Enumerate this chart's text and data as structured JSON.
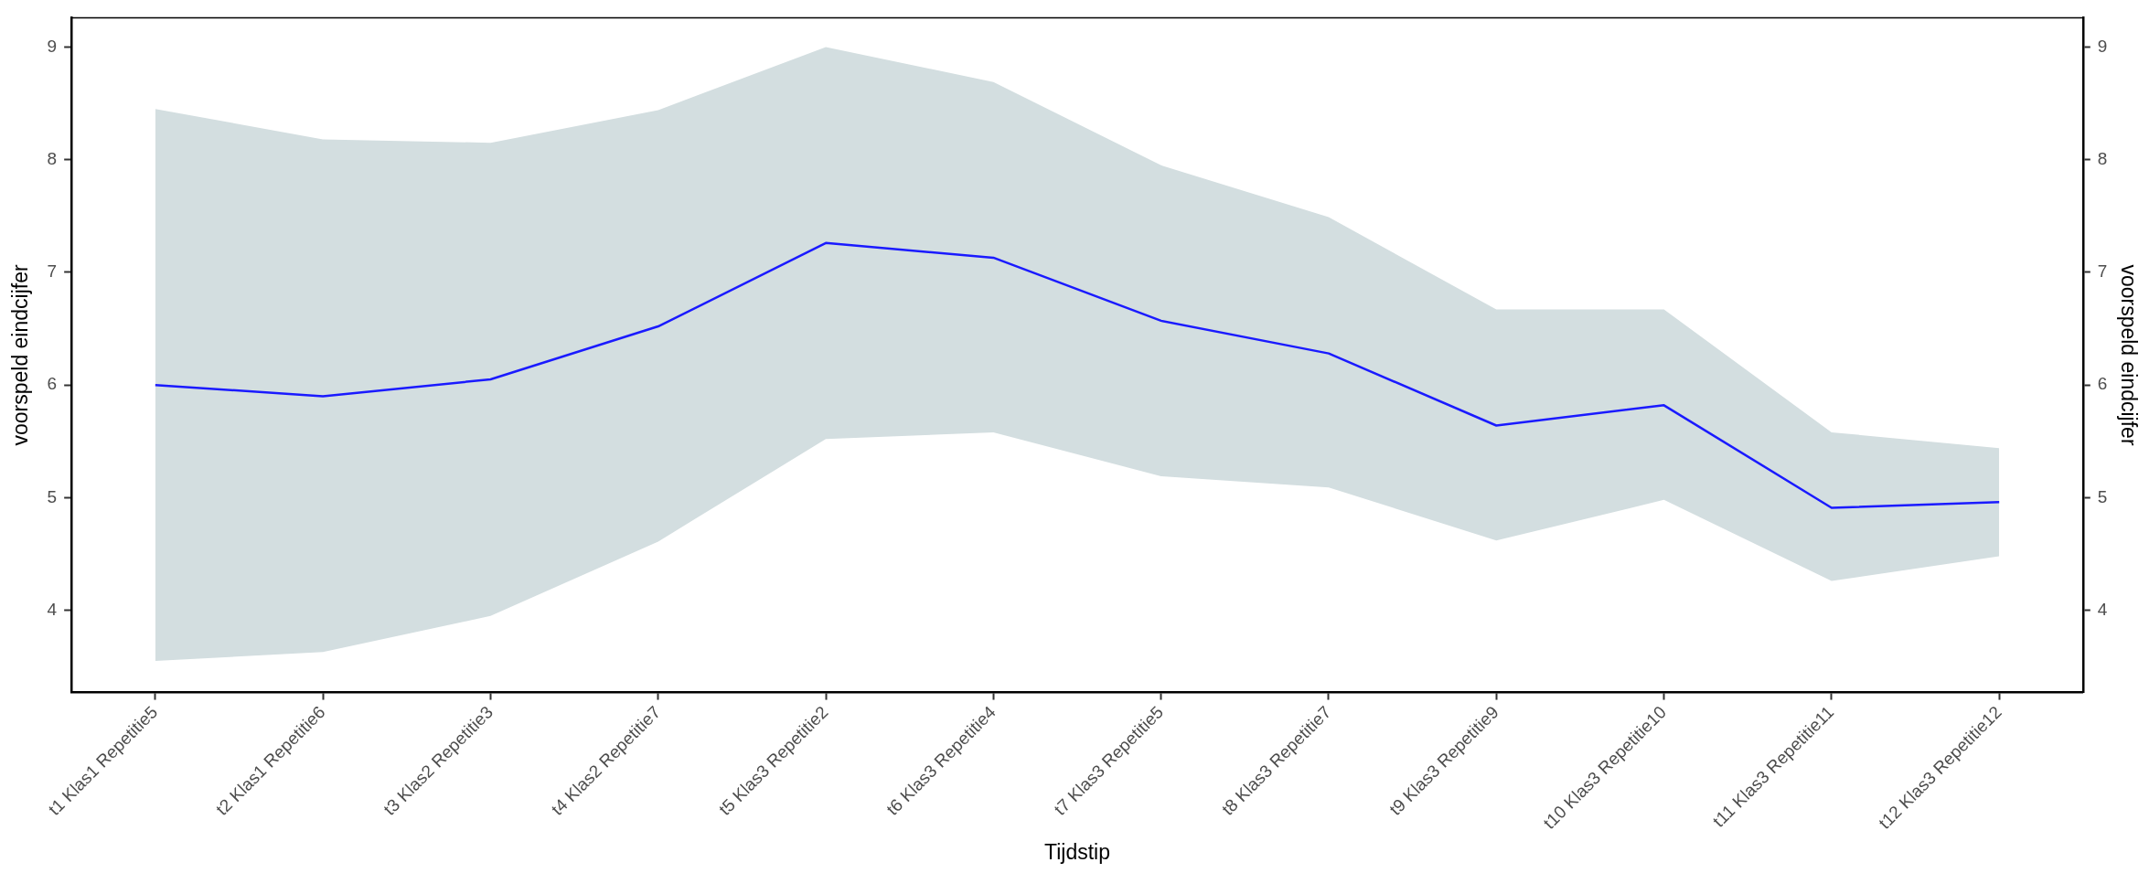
{
  "chart_data": {
    "type": "line",
    "xlabel": "Tijdstip",
    "ylabel": "voorspeld eindcijfer",
    "y2label": "voorspeld eindcijfer",
    "categories": [
      "t1 Klas1 Repetitie5",
      "t2 Klas1 Repetitie6",
      "t3 Klas2 Repetitie3",
      "t4 Klas2 Repetitie7",
      "t5 Klas3 Repetitie2",
      "t6 Klas3 Repetitie4",
      "t7 Klas3 Repetitie5",
      "t8 Klas3 Repetitie7",
      "t9 Klas3 Repetitie9",
      "t10 Klas3 Repetitie10",
      "t11 Klas3 Repetitie11",
      "t12 Klas3 Repetitie12"
    ],
    "series": [
      {
        "color": "#1a1aff",
        "values": [
          6.0,
          5.9,
          6.05,
          6.52,
          7.26,
          7.13,
          6.57,
          6.28,
          5.64,
          5.82,
          4.91,
          4.96
        ],
        "lower": [
          3.55,
          3.63,
          3.95,
          4.61,
          5.52,
          5.58,
          5.19,
          5.09,
          4.62,
          4.98,
          4.26,
          4.48
        ],
        "upper": [
          8.45,
          8.18,
          8.15,
          8.44,
          9.0,
          8.69,
          7.95,
          7.49,
          6.67,
          6.67,
          5.58,
          5.44
        ]
      }
    ],
    "ylim": [
      3.27,
      9.26
    ],
    "yticks": [
      4,
      5,
      6,
      7,
      8,
      9
    ],
    "y2lim": [
      3.27,
      9.26
    ],
    "y2ticks": [
      4,
      5,
      6,
      7,
      8,
      9
    ],
    "grid": false,
    "legend": false,
    "marker": "none",
    "line_style": "solid"
  }
}
